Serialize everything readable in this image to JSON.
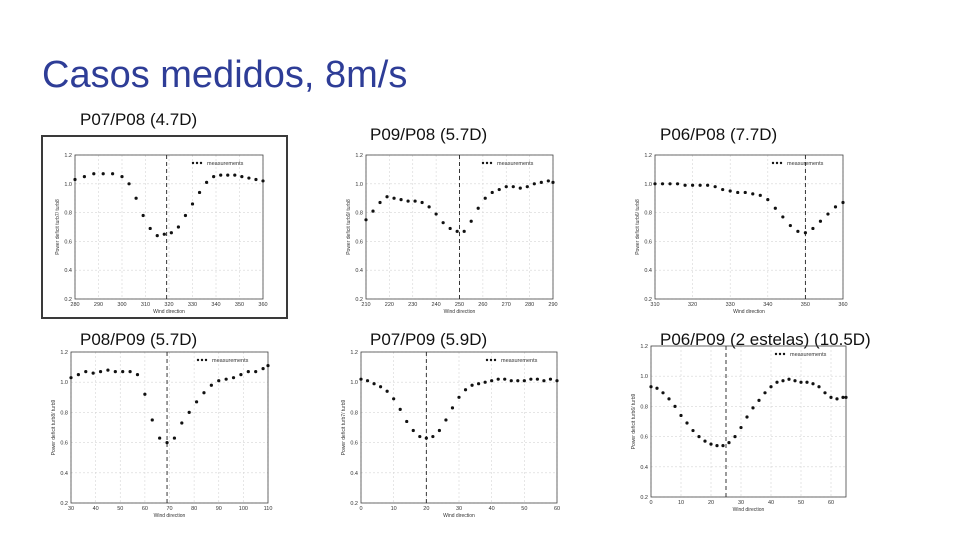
{
  "slide": {
    "title": "Casos medidos, 8m/s"
  },
  "chart_data": [
    {
      "id": "p07p08",
      "panel_label": "P07/P08 (4.7D)",
      "type": "scatter",
      "xlabel": "Wind direction",
      "ylabel": "Power deficit turb7/ turb8",
      "xlim": [
        280,
        360
      ],
      "ylim": [
        0.2,
        1.2
      ],
      "xticks": [
        280,
        290,
        300,
        310,
        320,
        330,
        340,
        350,
        360
      ],
      "yticks": [
        0.2,
        0.4,
        0.6,
        0.8,
        1.0,
        1.2
      ],
      "grid": true,
      "legend": "measurements",
      "legend_position": "top-right",
      "vline_x": 319,
      "series": [
        {
          "name": "measurements",
          "x": [
            280,
            284,
            288,
            292,
            296,
            300,
            303,
            306,
            309,
            312,
            315,
            318,
            321,
            324,
            327,
            330,
            333,
            336,
            339,
            342,
            345,
            348,
            351,
            354,
            357,
            360
          ],
          "y": [
            1.03,
            1.05,
            1.07,
            1.07,
            1.07,
            1.05,
            1.0,
            0.9,
            0.78,
            0.69,
            0.64,
            0.65,
            0.66,
            0.7,
            0.78,
            0.86,
            0.94,
            1.01,
            1.05,
            1.06,
            1.06,
            1.06,
            1.05,
            1.04,
            1.03,
            1.02
          ]
        }
      ]
    },
    {
      "id": "p09p08",
      "panel_label": "P09/P08 (5.7D)",
      "type": "scatter",
      "xlabel": "Wind direction",
      "ylabel": "Power deficit turb9/ turb8",
      "xlim": [
        210,
        290
      ],
      "ylim": [
        0.2,
        1.2
      ],
      "xticks": [
        210,
        220,
        230,
        240,
        250,
        260,
        270,
        280,
        290
      ],
      "yticks": [
        0.2,
        0.4,
        0.6,
        0.8,
        1.0,
        1.2
      ],
      "grid": true,
      "legend": "measurements",
      "legend_position": "top-right",
      "vline_x": 250,
      "series": [
        {
          "name": "measurements",
          "x": [
            210,
            213,
            216,
            219,
            222,
            225,
            228,
            231,
            234,
            237,
            240,
            243,
            246,
            249,
            252,
            255,
            258,
            261,
            264,
            267,
            270,
            273,
            276,
            279,
            282,
            285,
            288,
            290
          ],
          "y": [
            0.75,
            0.81,
            0.87,
            0.91,
            0.9,
            0.89,
            0.88,
            0.88,
            0.87,
            0.84,
            0.79,
            0.73,
            0.69,
            0.67,
            0.67,
            0.74,
            0.83,
            0.9,
            0.94,
            0.96,
            0.98,
            0.98,
            0.97,
            0.98,
            1.0,
            1.01,
            1.02,
            1.01
          ]
        }
      ]
    },
    {
      "id": "p06p08",
      "panel_label": "P06/P08 (7.7D)",
      "type": "scatter",
      "xlabel": "Wind direction",
      "ylabel": "Power deficit turb6/ turb8",
      "xlim": [
        310,
        360
      ],
      "ylim": [
        0.2,
        1.2
      ],
      "xticks": [
        310,
        320,
        330,
        340,
        350,
        360
      ],
      "yticks": [
        0.2,
        0.4,
        0.6,
        0.8,
        1.0,
        1.2
      ],
      "grid": true,
      "legend": "measurements",
      "legend_position": "top-right",
      "vline_x": 350,
      "series": [
        {
          "name": "measurements",
          "x": [
            310,
            312,
            314,
            316,
            318,
            320,
            322,
            324,
            326,
            328,
            330,
            332,
            334,
            336,
            338,
            340,
            342,
            344,
            346,
            348,
            350,
            352,
            354,
            356,
            358,
            360
          ],
          "y": [
            1.0,
            1.0,
            1.0,
            1.0,
            0.99,
            0.99,
            0.99,
            0.99,
            0.98,
            0.96,
            0.95,
            0.94,
            0.94,
            0.93,
            0.92,
            0.89,
            0.83,
            0.77,
            0.71,
            0.67,
            0.66,
            0.69,
            0.74,
            0.79,
            0.84,
            0.87
          ]
        }
      ]
    },
    {
      "id": "p08p09",
      "panel_label": "P08/P09 (5.7D)",
      "type": "scatter",
      "xlabel": "Wind direction",
      "ylabel": "Power deficit turb8/ turb9",
      "xlim": [
        30,
        110
      ],
      "ylim": [
        0.2,
        1.2
      ],
      "xticks": [
        30,
        40,
        50,
        60,
        70,
        80,
        90,
        100,
        110
      ],
      "yticks": [
        0.2,
        0.4,
        0.6,
        0.8,
        1.0,
        1.2
      ],
      "grid": true,
      "legend": "measurements",
      "legend_position": "top-right",
      "vline_x": 69,
      "series": [
        {
          "name": "measurements",
          "x": [
            30,
            33,
            36,
            39,
            42,
            45,
            48,
            51,
            54,
            57,
            60,
            63,
            66,
            69,
            72,
            75,
            78,
            81,
            84,
            87,
            90,
            93,
            96,
            99,
            102,
            105,
            108,
            110
          ],
          "y": [
            1.03,
            1.05,
            1.07,
            1.06,
            1.07,
            1.08,
            1.07,
            1.07,
            1.07,
            1.05,
            0.92,
            0.75,
            0.63,
            0.6,
            0.63,
            0.73,
            0.8,
            0.87,
            0.93,
            0.98,
            1.01,
            1.02,
            1.03,
            1.05,
            1.07,
            1.07,
            1.09,
            1.11
          ]
        }
      ]
    },
    {
      "id": "p07p09",
      "panel_label": "P07/P09 (5.9D)",
      "type": "scatter",
      "xlabel": "Wind direction",
      "ylabel": "Power deficit turb7/ turb9",
      "xlim": [
        0,
        60
      ],
      "ylim": [
        0.2,
        1.2
      ],
      "xticks": [
        0,
        10,
        20,
        30,
        40,
        50,
        60
      ],
      "yticks": [
        0.2,
        0.4,
        0.6,
        0.8,
        1.0,
        1.2
      ],
      "grid": true,
      "legend": "measurements",
      "legend_position": "top-right",
      "vline_x": 20,
      "series": [
        {
          "name": "measurements",
          "x": [
            0,
            2,
            4,
            6,
            8,
            10,
            12,
            14,
            16,
            18,
            20,
            22,
            24,
            26,
            28,
            30,
            32,
            34,
            36,
            38,
            40,
            42,
            44,
            46,
            48,
            50,
            52,
            54,
            56,
            58,
            60
          ],
          "y": [
            1.02,
            1.01,
            0.99,
            0.97,
            0.94,
            0.89,
            0.82,
            0.74,
            0.68,
            0.64,
            0.63,
            0.64,
            0.68,
            0.75,
            0.83,
            0.9,
            0.95,
            0.98,
            0.99,
            1.0,
            1.01,
            1.02,
            1.02,
            1.01,
            1.01,
            1.01,
            1.02,
            1.02,
            1.01,
            1.02,
            1.01
          ]
        }
      ]
    },
    {
      "id": "p06p09",
      "panel_label": "P06/P09 (2 estelas) (10.5D)",
      "type": "scatter",
      "xlabel": "Wind direction",
      "ylabel": "Power deficit turb6/ turb9",
      "xlim": [
        0,
        65
      ],
      "ylim": [
        0.2,
        1.2
      ],
      "xticks": [
        0,
        10,
        20,
        30,
        40,
        50,
        60
      ],
      "yticks": [
        0.2,
        0.4,
        0.6,
        0.8,
        1.0,
        1.2
      ],
      "grid": true,
      "legend": "measurements",
      "legend_position": "top-right",
      "vline_x": 25,
      "series": [
        {
          "name": "measurements",
          "x": [
            0,
            2,
            4,
            6,
            8,
            10,
            12,
            14,
            16,
            18,
            20,
            22,
            24,
            26,
            28,
            30,
            32,
            34,
            36,
            38,
            40,
            42,
            44,
            46,
            48,
            50,
            52,
            54,
            56,
            58,
            60,
            62,
            64,
            65
          ],
          "y": [
            0.93,
            0.92,
            0.89,
            0.85,
            0.8,
            0.74,
            0.69,
            0.64,
            0.6,
            0.57,
            0.55,
            0.54,
            0.54,
            0.56,
            0.6,
            0.66,
            0.73,
            0.79,
            0.84,
            0.89,
            0.93,
            0.96,
            0.97,
            0.98,
            0.97,
            0.96,
            0.96,
            0.95,
            0.93,
            0.89,
            0.86,
            0.85,
            0.86,
            0.86
          ]
        }
      ]
    }
  ]
}
